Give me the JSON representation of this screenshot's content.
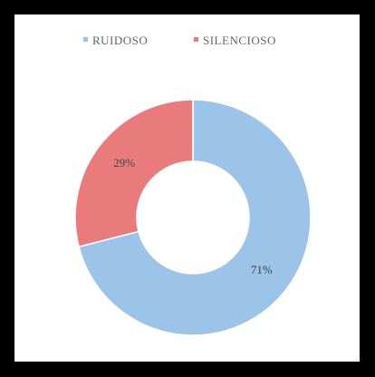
{
  "chart_data": {
    "type": "donut",
    "categories": [
      "RUIDOSO",
      "SILENCIOSO"
    ],
    "values": [
      71,
      29
    ],
    "value_labels": [
      "71%",
      "29%"
    ],
    "colors": [
      "#9cc3e8",
      "#e97b7c"
    ],
    "legend": "top"
  }
}
